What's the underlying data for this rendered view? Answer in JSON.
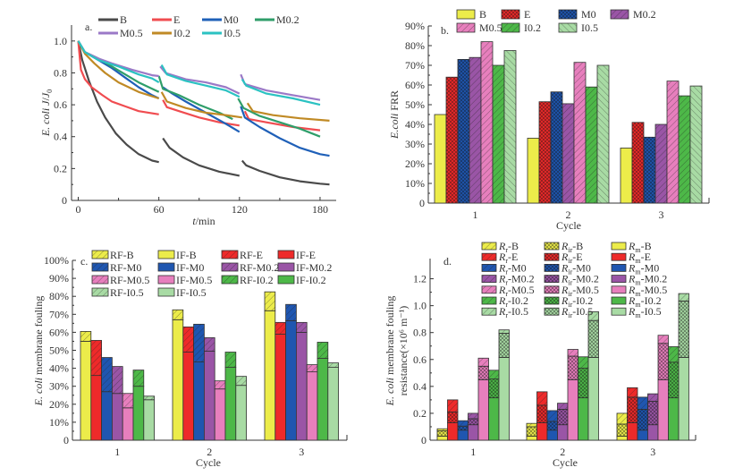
{
  "colors": {
    "B": "#ecec4a",
    "E": "#ee2a2a",
    "M0": "#1f56b0",
    "M0.2": "#9a55a6",
    "M0.5": "#e77fbd",
    "I0.2": "#4db848",
    "I0.5": "#a8dba4",
    "line_B": "#4a4a4a",
    "line_E": "#f04c50",
    "line_M0": "#1f60b8",
    "line_M0.2": "#2f9e6a",
    "line_M0.5": "#9b79c7",
    "line_I0.2": "#c08a25",
    "line_I0.5": "#2bc2c2"
  },
  "chart_data": [
    {
      "id": "a",
      "type": "line",
      "panel_letter": "a.",
      "xlabel": "t/min",
      "ylabel": "E. coli J/J0",
      "xlim": [
        -5,
        192
      ],
      "ylim": [
        0,
        1.1
      ],
      "xticks": [
        "0",
        "60",
        "120",
        "180"
      ],
      "xtick_values": [
        0,
        60,
        120,
        180
      ],
      "yticks": [
        "0",
        "0.2",
        "0.4",
        "0.6",
        "0.8",
        "1.0"
      ],
      "ytick_values": [
        0,
        0.2,
        0.4,
        0.6,
        0.8,
        1.0
      ],
      "legend": [
        "B",
        "E",
        "M0",
        "M0.2",
        "M0.5",
        "I0.2",
        "I0.5"
      ],
      "legend_position": "top",
      "series": [
        {
          "name": "B",
          "segments": [
            [
              [
                0,
                1.0
              ],
              [
                3,
                0.88
              ],
              [
                8,
                0.75
              ],
              [
                14,
                0.62
              ],
              [
                20,
                0.52
              ],
              [
                28,
                0.42
              ],
              [
                36,
                0.35
              ],
              [
                45,
                0.29
              ],
              [
                55,
                0.25
              ],
              [
                60,
                0.24
              ]
            ],
            [
              [
                63,
                0.39
              ],
              [
                68,
                0.33
              ],
              [
                78,
                0.27
              ],
              [
                90,
                0.22
              ],
              [
                105,
                0.18
              ],
              [
                120,
                0.155
              ]
            ],
            [
              [
                122,
                0.25
              ],
              [
                125,
                0.22
              ],
              [
                135,
                0.185
              ],
              [
                150,
                0.145
              ],
              [
                165,
                0.12
              ],
              [
                180,
                0.105
              ],
              [
                187,
                0.1
              ]
            ]
          ]
        },
        {
          "name": "E",
          "segments": [
            [
              [
                0,
                1.0
              ],
              [
                2,
                0.82
              ],
              [
                5,
                0.76
              ],
              [
                10,
                0.71
              ],
              [
                18,
                0.66
              ],
              [
                25,
                0.62
              ],
              [
                35,
                0.59
              ],
              [
                45,
                0.56
              ],
              [
                60,
                0.54
              ]
            ],
            [
              [
                63,
                0.63
              ],
              [
                66,
                0.585
              ],
              [
                75,
                0.56
              ],
              [
                90,
                0.52
              ],
              [
                105,
                0.49
              ],
              [
                120,
                0.47
              ]
            ],
            [
              [
                124,
                0.56
              ],
              [
                127,
                0.51
              ],
              [
                140,
                0.49
              ],
              [
                160,
                0.46
              ],
              [
                180,
                0.44
              ]
            ]
          ]
        },
        {
          "name": "M0",
          "segments": [
            [
              [
                0,
                1.0
              ],
              [
                5,
                0.93
              ],
              [
                15,
                0.88
              ],
              [
                25,
                0.83
              ],
              [
                35,
                0.77
              ],
              [
                45,
                0.71
              ],
              [
                55,
                0.66
              ],
              [
                60,
                0.64
              ]
            ],
            [
              [
                63,
                0.71
              ],
              [
                70,
                0.67
              ],
              [
                80,
                0.62
              ],
              [
                95,
                0.55
              ],
              [
                110,
                0.48
              ],
              [
                120,
                0.43
              ]
            ],
            [
              [
                121,
                0.59
              ],
              [
                124,
                0.52
              ],
              [
                135,
                0.46
              ],
              [
                150,
                0.39
              ],
              [
                165,
                0.33
              ],
              [
                180,
                0.29
              ],
              [
                187,
                0.28
              ]
            ]
          ]
        },
        {
          "name": "M0.2",
          "segments": [
            [
              [
                0,
                1.0
              ],
              [
                5,
                0.93
              ],
              [
                15,
                0.89
              ],
              [
                25,
                0.84
              ],
              [
                35,
                0.79
              ],
              [
                45,
                0.74
              ],
              [
                55,
                0.7
              ],
              [
                60,
                0.68
              ]
            ],
            [
              [
                60,
                0.78
              ],
              [
                63,
                0.7
              ],
              [
                75,
                0.66
              ],
              [
                90,
                0.6
              ],
              [
                105,
                0.55
              ],
              [
                115,
                0.51
              ]
            ],
            [
              [
                119,
                0.64
              ],
              [
                123,
                0.58
              ],
              [
                135,
                0.53
              ],
              [
                150,
                0.49
              ],
              [
                165,
                0.45
              ],
              [
                180,
                0.4
              ]
            ]
          ]
        },
        {
          "name": "M0.5",
          "segments": [
            [
              [
                0,
                1.0
              ],
              [
                5,
                0.93
              ],
              [
                15,
                0.89
              ],
              [
                25,
                0.86
              ],
              [
                40,
                0.82
              ],
              [
                55,
                0.785
              ],
              [
                60,
                0.78
              ]
            ],
            [
              [
                61,
                0.84
              ],
              [
                65,
                0.8
              ],
              [
                80,
                0.76
              ],
              [
                95,
                0.74
              ],
              [
                110,
                0.71
              ],
              [
                120,
                0.67
              ]
            ],
            [
              [
                121,
                0.79
              ],
              [
                124,
                0.73
              ],
              [
                140,
                0.69
              ],
              [
                160,
                0.66
              ],
              [
                180,
                0.63
              ]
            ]
          ]
        },
        {
          "name": "I0.2",
          "segments": [
            [
              [
                0,
                1.0
              ],
              [
                5,
                0.92
              ],
              [
                12,
                0.86
              ],
              [
                20,
                0.8
              ],
              [
                30,
                0.74
              ],
              [
                45,
                0.68
              ],
              [
                60,
                0.64
              ]
            ],
            [
              [
                62,
                0.68
              ],
              [
                66,
                0.62
              ],
              [
                80,
                0.58
              ],
              [
                95,
                0.55
              ],
              [
                110,
                0.535
              ],
              [
                122,
                0.52
              ]
            ],
            [
              [
                126,
                0.61
              ],
              [
                130,
                0.56
              ],
              [
                145,
                0.535
              ],
              [
                165,
                0.515
              ],
              [
                187,
                0.5
              ]
            ]
          ]
        },
        {
          "name": "I0.5",
          "segments": [
            [
              [
                0,
                1.0
              ],
              [
                5,
                0.93
              ],
              [
                15,
                0.88
              ],
              [
                30,
                0.84
              ],
              [
                45,
                0.79
              ],
              [
                55,
                0.765
              ],
              [
                60,
                0.74
              ]
            ],
            [
              [
                62,
                0.85
              ],
              [
                66,
                0.79
              ],
              [
                80,
                0.75
              ],
              [
                95,
                0.72
              ],
              [
                110,
                0.69
              ],
              [
                120,
                0.65
              ]
            ],
            [
              [
                122,
                0.76
              ],
              [
                125,
                0.72
              ],
              [
                140,
                0.67
              ],
              [
                160,
                0.64
              ],
              [
                180,
                0.6
              ]
            ]
          ]
        }
      ]
    },
    {
      "id": "b",
      "type": "bar",
      "panel_letter": "b.",
      "xlabel": "Cycle",
      "ylabel": "E.coli FRR",
      "categories": [
        "1",
        "2",
        "3"
      ],
      "ylim": [
        0,
        90
      ],
      "yticks": [
        "0",
        "10%",
        "20%",
        "30%",
        "40%",
        "50%",
        "60%",
        "70%",
        "80%",
        "90%"
      ],
      "legend": [
        "B",
        "E",
        "M0",
        "M0.2",
        "M0.5",
        "I0.2",
        "I0.5"
      ],
      "legend_position": "top",
      "series": [
        {
          "name": "B",
          "values": [
            45,
            33,
            28
          ]
        },
        {
          "name": "E",
          "values": [
            64,
            51.5,
            41
          ]
        },
        {
          "name": "M0",
          "values": [
            73,
            56.5,
            33.5
          ]
        },
        {
          "name": "M0.2",
          "values": [
            74,
            50.5,
            40
          ]
        },
        {
          "name": "M0.5",
          "values": [
            82,
            71.5,
            62
          ]
        },
        {
          "name": "I0.2",
          "values": [
            70,
            59,
            54.5
          ]
        },
        {
          "name": "I0.5",
          "values": [
            77.5,
            70,
            59.5
          ]
        }
      ]
    },
    {
      "id": "c",
      "type": "bar",
      "stacked": true,
      "panel_letter": "c.",
      "xlabel": "Cycle",
      "ylabel": "E. coli membrane fouling",
      "categories": [
        "1",
        "2",
        "3"
      ],
      "ylim": [
        0,
        100
      ],
      "yticks": [
        "0",
        "10%",
        "20%",
        "30%",
        "40%",
        "50%",
        "60%",
        "70%",
        "80%",
        "90%",
        "100%"
      ],
      "legend": [
        "RF-B",
        "IF-B",
        "RF-E",
        "IF-E",
        "RF-M0",
        "IF-M0",
        "RF-M0.2",
        "IF-M0.2",
        "RF-M0.5",
        "IF-M0.5",
        "RF-I0.2",
        "IF-I0.2",
        "RF-I0.5",
        "IF-I0.5"
      ],
      "legend_position": "top",
      "series": [
        {
          "name": "B",
          "IF": [
            55,
            67,
            72
          ],
          "RF": [
            5.5,
            5.5,
            10.5
          ]
        },
        {
          "name": "E",
          "IF": [
            36,
            49,
            59
          ],
          "RF": [
            19.5,
            14,
            6.5
          ]
        },
        {
          "name": "M0",
          "IF": [
            27,
            43.5,
            66.5
          ],
          "RF": [
            19,
            21,
            9
          ]
        },
        {
          "name": "M0.2",
          "IF": [
            26,
            49.5,
            60
          ],
          "RF": [
            15,
            7.5,
            5.5
          ]
        },
        {
          "name": "M0.5",
          "IF": [
            18,
            28.5,
            38
          ],
          "RF": [
            8,
            4.5,
            4
          ]
        },
        {
          "name": "I0.2",
          "IF": [
            30,
            40.5,
            45.5
          ],
          "RF": [
            9,
            8.5,
            9
          ]
        },
        {
          "name": "I0.5",
          "IF": [
            22.5,
            30.5,
            40.5
          ],
          "RF": [
            2,
            5,
            2.5
          ]
        }
      ]
    },
    {
      "id": "d",
      "type": "bar",
      "stacked": true,
      "panel_letter": "d.",
      "xlabel": "Cycle",
      "ylabel_line1": "E. coli membrane fouling",
      "ylabel_line2": "resistance(×10⁶ m⁻¹)",
      "categories": [
        "1",
        "2",
        "3"
      ],
      "ylim": [
        0,
        1.35
      ],
      "yticks": [
        "0",
        "0.2",
        "0.4",
        "0.6",
        "0.8",
        "1.0",
        "1.2"
      ],
      "legend": [
        "Rr-B",
        "Rir-B",
        "Rm-B",
        "Rr-E",
        "Rir-E",
        "Rm-E",
        "Rr-M0",
        "Rir-M0",
        "Rm-M0",
        "Rr-M0.2",
        "Rir-M0.2",
        "Rm-M0.2",
        "Rr-M0.5",
        "Rir-M0.5",
        "Rm-M0.5",
        "Rr-I0.2",
        "Rir-I0.2",
        "Rm-I0.2",
        "Rr-I0.5",
        "Rir-I0.5",
        "Rm-I0.5"
      ],
      "legend_position": "top",
      "series": [
        {
          "name": "B",
          "Rm": [
            0.03,
            0.03,
            0.03
          ],
          "Rir": [
            0.04,
            0.07,
            0.09
          ],
          "Rr": [
            0.015,
            0.025,
            0.08
          ]
        },
        {
          "name": "E",
          "Rm": [
            0.13,
            0.13,
            0.13
          ],
          "Rir": [
            0.08,
            0.13,
            0.19
          ],
          "Rr": [
            0.09,
            0.1,
            0.07
          ]
        },
        {
          "name": "M0",
          "Rm": [
            0.075,
            0.075,
            0.075
          ],
          "Rir": [
            0.03,
            0.065,
            0.155
          ],
          "Rr": [
            0.04,
            0.08,
            0.09
          ]
        },
        {
          "name": "M0.2",
          "Rm": [
            0.115,
            0.115,
            0.115
          ],
          "Rir": [
            0.045,
            0.115,
            0.175
          ],
          "Rr": [
            0.04,
            0.045,
            0.055
          ]
        },
        {
          "name": "M0.5",
          "Rm": [
            0.45,
            0.45,
            0.45
          ],
          "Rir": [
            0.1,
            0.175,
            0.27
          ],
          "Rr": [
            0.06,
            0.05,
            0.06
          ]
        },
        {
          "name": "I0.2",
          "Rm": [
            0.315,
            0.315,
            0.315
          ],
          "Rir": [
            0.14,
            0.22,
            0.265
          ],
          "Rr": [
            0.065,
            0.085,
            0.115
          ]
        },
        {
          "name": "I0.5",
          "Rm": [
            0.615,
            0.615,
            0.615
          ],
          "Rir": [
            0.18,
            0.275,
            0.42
          ],
          "Rr": [
            0.025,
            0.065,
            0.055
          ]
        }
      ]
    }
  ]
}
